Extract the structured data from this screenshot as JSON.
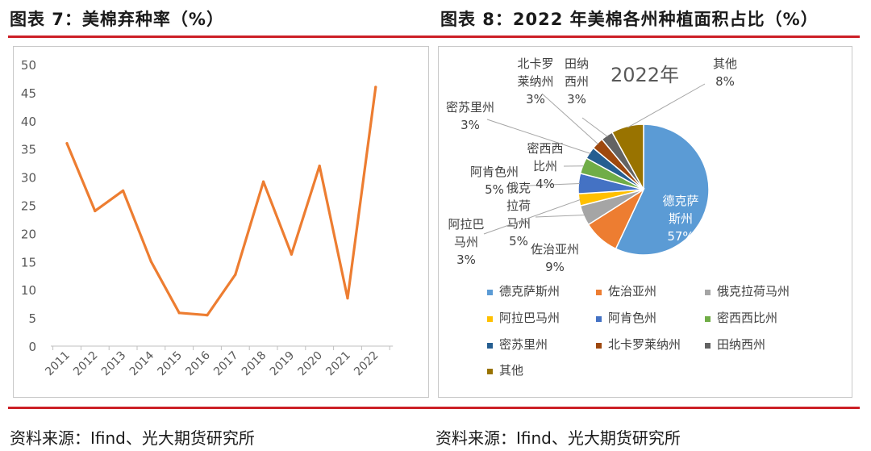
{
  "left_chart_title": "图表 7：美棉弃种率（%）",
  "right_chart_title": "图表 8：2022 年美棉各州种植面积占比（%）",
  "left_source": "资料来源：Ifind、光大期货研究所",
  "right_source": "资料来源：Ifind、光大期货研究所",
  "colors": {
    "accent_red": "#cc1f26",
    "line": "#ed7d31"
  },
  "chart_data": [
    {
      "type": "line",
      "title": "",
      "xlabel": "",
      "ylabel": "",
      "categories": [
        "2011",
        "2012",
        "2013",
        "2014",
        "2015",
        "2016",
        "2017",
        "2018",
        "2019",
        "2020",
        "2021",
        "2022"
      ],
      "values": [
        36.0,
        24.0,
        27.6,
        15.0,
        5.9,
        5.5,
        12.7,
        29.2,
        16.3,
        32.0,
        8.5,
        46.0
      ],
      "ylim": [
        0,
        50
      ],
      "yticks": [
        "0",
        "5",
        "10",
        "15",
        "20",
        "25",
        "30",
        "35",
        "40",
        "45",
        "50"
      ],
      "grid": false,
      "legend": "none",
      "series_color": "#ed7d31"
    },
    {
      "type": "pie",
      "title": "2022年",
      "slices": [
        {
          "name": "德克萨斯州",
          "label_lines": [
            "德克萨",
            "斯州"
          ],
          "value": 57,
          "value_label": "57%",
          "color": "#5b9bd5"
        },
        {
          "name": "佐治亚州",
          "label_lines": [
            "佐治亚州"
          ],
          "value": 9,
          "value_label": "9%",
          "color": "#ed7d31"
        },
        {
          "name": "俄克拉荷马州",
          "label_lines": [
            "俄克",
            "拉荷",
            "马州"
          ],
          "value": 5,
          "value_label": "5%",
          "color": "#a5a5a5"
        },
        {
          "name": "阿拉巴马州",
          "label_lines": [
            "阿拉巴",
            "马州"
          ],
          "value": 3,
          "value_label": "3%",
          "color": "#ffc000"
        },
        {
          "name": "阿肯色州",
          "label_lines": [
            "阿肯色州"
          ],
          "value": 5,
          "value_label": "5%",
          "color": "#4472c4"
        },
        {
          "name": "密西西比州",
          "label_lines": [
            "密西西",
            "比州"
          ],
          "value": 4,
          "value_label": "4%",
          "color": "#70ad47"
        },
        {
          "name": "密苏里州",
          "label_lines": [
            "密苏里州"
          ],
          "value": 3,
          "value_label": "3%",
          "color": "#255e91"
        },
        {
          "name": "北卡罗莱纳州",
          "label_lines": [
            "北卡罗",
            "莱纳州"
          ],
          "value": 3,
          "value_label": "3%",
          "color": "#9e480e"
        },
        {
          "name": "田纳西州",
          "label_lines": [
            "田纳",
            "西州"
          ],
          "value": 3,
          "value_label": "3%",
          "color": "#636363"
        },
        {
          "name": "其他",
          "label_lines": [
            "其他"
          ],
          "value": 8,
          "value_label": "8%",
          "color": "#997300"
        }
      ],
      "legend": "bottom"
    }
  ]
}
